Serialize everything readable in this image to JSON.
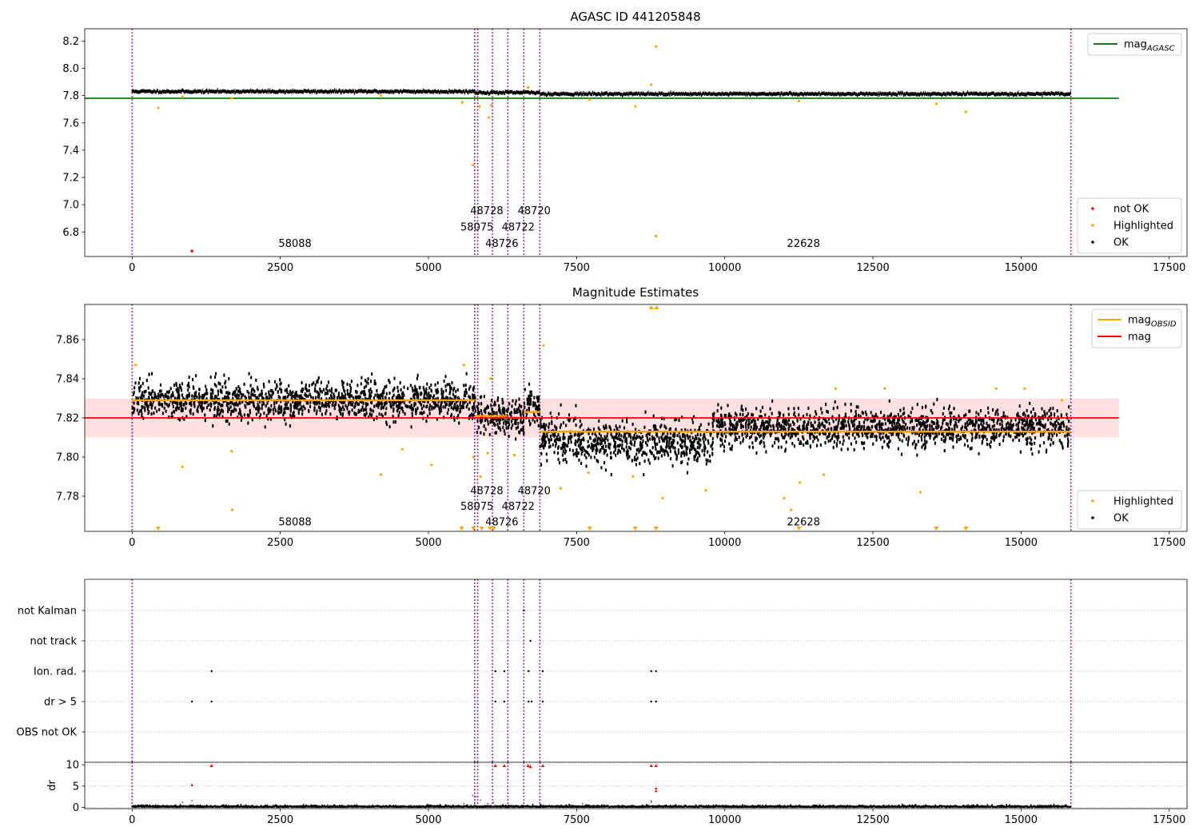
{
  "chart_data": [
    {
      "type": "scatter",
      "title": "AGASC ID 441205848",
      "xlabel": "",
      "ylabel": "",
      "xlim": [
        -800,
        17800
      ],
      "ylim": [
        6.62,
        8.29
      ],
      "xticks": [
        "0",
        "2500",
        "5000",
        "7500",
        "10000",
        "12500",
        "15000",
        "17500"
      ],
      "xtick_values": [
        0,
        2500,
        5000,
        7500,
        10000,
        12500,
        15000,
        17500
      ],
      "yticks": [
        "6.8",
        "7.0",
        "7.2",
        "7.4",
        "7.6",
        "7.8",
        "8.0",
        "8.2"
      ],
      "ytick_values": [
        6.8,
        7.0,
        7.2,
        7.4,
        7.6,
        7.8,
        8.0,
        8.2
      ],
      "reference_line": {
        "name": "mag",
        "subscript": "AGASC",
        "y": 7.78,
        "x": [
          -800,
          16650
        ],
        "color": "#008000"
      },
      "boundaries": [
        0,
        5780,
        5830,
        6080,
        6340,
        6610,
        6880,
        15840
      ],
      "obsid_labels": [
        {
          "text": "58088",
          "x": 2470,
          "y": 6.69
        },
        {
          "text": "58075",
          "x": 5540,
          "y": 6.81
        },
        {
          "text": "48728",
          "x": 5705,
          "y": 6.93
        },
        {
          "text": "48726",
          "x": 5960,
          "y": 6.69
        },
        {
          "text": "48722",
          "x": 6235,
          "y": 6.81
        },
        {
          "text": "48720",
          "x": 6505,
          "y": 6.93
        },
        {
          "text": "22628",
          "x": 11050,
          "y": 6.69
        }
      ],
      "band_levels": [
        {
          "x": [
            0,
            5790
          ],
          "y": 7.83
        },
        {
          "x": [
            5790,
            6880
          ],
          "y": 7.822
        },
        {
          "x": [
            6880,
            15840
          ],
          "y": 7.812
        }
      ],
      "not_ok_points": [
        [
          1010,
          6.66
        ]
      ],
      "highlighted_points": [
        [
          440,
          7.71
        ],
        [
          850,
          7.79
        ],
        [
          1680,
          7.78
        ],
        [
          4200,
          7.8
        ],
        [
          5570,
          7.75
        ],
        [
          5750,
          7.29
        ],
        [
          5860,
          7.72
        ],
        [
          6020,
          7.64
        ],
        [
          6060,
          7.73
        ],
        [
          6680,
          7.86
        ],
        [
          7720,
          7.77
        ],
        [
          8490,
          7.72
        ],
        [
          8760,
          7.88
        ],
        [
          8840,
          8.16
        ],
        [
          8840,
          6.77
        ],
        [
          11250,
          7.76
        ],
        [
          13570,
          7.74
        ],
        [
          14070,
          7.68
        ]
      ],
      "legend_top": [
        {
          "label": "mag",
          "subscript": "AGASC",
          "color": "#008000",
          "kind": "line"
        }
      ],
      "legend_bottom": [
        {
          "label": "not OK",
          "color": "#ff0000",
          "kind": "dot"
        },
        {
          "label": "Highlighted",
          "color": "#ffa500",
          "kind": "dot"
        },
        {
          "label": "OK",
          "color": "#000000",
          "kind": "dot"
        }
      ],
      "colors": {
        "ok": "#000000",
        "highlighted": "#ffa500",
        "not_ok": "#ff0000",
        "boundary": "#800080"
      }
    },
    {
      "type": "scatter",
      "title": "Magnitude Estimates",
      "xlabel": "",
      "ylabel": "",
      "xlim": [
        -800,
        17800
      ],
      "ylim": [
        7.762,
        7.878
      ],
      "xticks": [
        "0",
        "2500",
        "5000",
        "7500",
        "10000",
        "12500",
        "15000",
        "17500"
      ],
      "xtick_values": [
        0,
        2500,
        5000,
        7500,
        10000,
        12500,
        15000,
        17500
      ],
      "yticks": [
        "7.78",
        "7.80",
        "7.82",
        "7.84",
        "7.86"
      ],
      "ytick_values": [
        7.78,
        7.8,
        7.82,
        7.84,
        7.86
      ],
      "mag_line": {
        "name": "mag",
        "y": 7.82,
        "x": [
          -800,
          16650
        ],
        "band": [
          7.81,
          7.83
        ],
        "color": "#ff0000"
      },
      "obsid_mag": [
        {
          "x": [
            0,
            5790
          ],
          "y": 7.829
        },
        {
          "x": [
            5790,
            6330
          ],
          "y": 7.821
        },
        {
          "x": [
            6330,
            6610
          ],
          "y": 7.82
        },
        {
          "x": [
            6610,
            6880
          ],
          "y": 7.823
        },
        {
          "x": [
            6880,
            15840
          ],
          "y": 7.813
        }
      ],
      "boundaries": [
        0,
        5780,
        5830,
        6080,
        6340,
        6610,
        6880,
        15840
      ],
      "obsid_labels": [
        {
          "text": "58088",
          "x": 2470,
          "y": 7.765
        },
        {
          "text": "58075",
          "x": 5540,
          "y": 7.773
        },
        {
          "text": "48728",
          "x": 5705,
          "y": 7.781
        },
        {
          "text": "48726",
          "x": 5960,
          "y": 7.765
        },
        {
          "text": "48722",
          "x": 6235,
          "y": 7.773
        },
        {
          "text": "48720",
          "x": 6505,
          "y": 7.781
        },
        {
          "text": "22628",
          "x": 11050,
          "y": 7.765
        }
      ],
      "segments": [
        {
          "x": [
            0,
            5790
          ],
          "center": 7.829,
          "spread": 0.0085
        },
        {
          "x": [
            5790,
            6340
          ],
          "center": 7.821,
          "spread": 0.008
        },
        {
          "x": [
            6340,
            6610
          ],
          "center": 7.82,
          "spread": 0.008
        },
        {
          "x": [
            6610,
            6880
          ],
          "center": 7.826,
          "spread": 0.009
        },
        {
          "x": [
            6880,
            7500
          ],
          "center": 7.81,
          "spread": 0.011
        },
        {
          "x": [
            7500,
            9800
          ],
          "center": 7.807,
          "spread": 0.01
        },
        {
          "x": [
            9800,
            15840
          ],
          "center": 7.815,
          "spread": 0.009
        }
      ],
      "highlighted_points": [
        [
          60,
          7.847
        ],
        [
          850,
          7.795
        ],
        [
          1680,
          7.803
        ],
        [
          1690,
          7.773
        ],
        [
          4200,
          7.791
        ],
        [
          4560,
          7.804
        ],
        [
          5050,
          7.796
        ],
        [
          5600,
          7.847
        ],
        [
          5760,
          7.8
        ],
        [
          5880,
          7.79
        ],
        [
          6000,
          7.802
        ],
        [
          6050,
          7.84
        ],
        [
          6450,
          7.801
        ],
        [
          6940,
          7.857
        ],
        [
          7230,
          7.784
        ],
        [
          7700,
          7.792
        ],
        [
          8450,
          7.79
        ],
        [
          8950,
          7.779
        ],
        [
          9680,
          7.783
        ],
        [
          11000,
          7.779
        ],
        [
          11120,
          7.773
        ],
        [
          11270,
          7.787
        ],
        [
          11670,
          7.791
        ],
        [
          11870,
          7.835
        ],
        [
          12700,
          7.835
        ],
        [
          13300,
          7.782
        ],
        [
          14580,
          7.835
        ],
        [
          15060,
          7.835
        ],
        [
          15690,
          7.829
        ]
      ],
      "offscale_low_x": [
        440,
        5560,
        5760,
        5900,
        6040,
        6100,
        7720,
        8490,
        8840,
        11250,
        13570,
        14070
      ],
      "offscale_high_x": [
        8760,
        8850
      ],
      "legend_top": [
        {
          "label": "mag",
          "subscript": "OBSID",
          "color": "#ffa500",
          "kind": "line"
        },
        {
          "label": "mag",
          "color": "#ff0000",
          "kind": "line"
        }
      ],
      "legend_bottom": [
        {
          "label": "Highlighted",
          "color": "#ffa500",
          "kind": "dot"
        },
        {
          "label": "OK",
          "color": "#000000",
          "kind": "dot"
        }
      ],
      "colors": {
        "ok": "#000000",
        "highlighted": "#ffa500",
        "boundary": "#800080"
      }
    },
    {
      "type": "scatter",
      "title": "",
      "xlabel": "",
      "ylabel": "",
      "xlim": [
        -800,
        17800
      ],
      "xticks": [
        "0",
        "2500",
        "5000",
        "7500",
        "10000",
        "12500",
        "15000",
        "17500"
      ],
      "xtick_values": [
        0,
        2500,
        5000,
        7500,
        10000,
        12500,
        15000,
        17500
      ],
      "flag_categories": [
        "not Kalman",
        "not track",
        "Ion. rad.",
        "dr > 5",
        "OBS not OK"
      ],
      "boundaries": [
        0,
        5780,
        5830,
        6080,
        6340,
        6610,
        6880,
        15840
      ],
      "flag_points": [
        {
          "category": "not Kalman",
          "x": [
            6610
          ]
        },
        {
          "category": "not track",
          "x": [
            6720
          ]
        },
        {
          "category": "Ion. rad.",
          "x": [
            1340,
            6130,
            6280,
            6690,
            6930,
            8760,
            8840
          ]
        },
        {
          "category": "dr > 5",
          "x": [
            1010,
            1340,
            6130,
            6280,
            6690,
            6740,
            6930,
            8760,
            8840
          ]
        },
        {
          "category": "OBS not OK",
          "x": []
        }
      ],
      "colors": {
        "flag": "#000000",
        "boundary": "#800080"
      }
    },
    {
      "type": "scatter",
      "title": "",
      "xlabel": "",
      "ylabel": "dr",
      "xlim": [
        -800,
        17800
      ],
      "ylim": [
        -0.3,
        10.6
      ],
      "xticks": [
        "0",
        "2500",
        "5000",
        "7500",
        "10000",
        "12500",
        "15000",
        "17500"
      ],
      "xtick_values": [
        0,
        2500,
        5000,
        7500,
        10000,
        12500,
        15000,
        17500
      ],
      "yticks": [
        "0",
        "5",
        "10"
      ],
      "ytick_values": [
        0,
        5,
        10
      ],
      "boundaries": [
        0,
        5780,
        5830,
        6080,
        6340,
        6610,
        6880,
        15840
      ],
      "clipped_points": [
        [
          1340,
          9.8
        ],
        [
          6130,
          9.8
        ],
        [
          6280,
          9.8
        ],
        [
          6680,
          9.8
        ],
        [
          6720,
          9.6
        ],
        [
          6930,
          9.8
        ],
        [
          8760,
          9.8
        ],
        [
          8840,
          9.8
        ]
      ],
      "red_points": [
        [
          1010,
          5.2
        ],
        [
          8840,
          4.4
        ],
        [
          8840,
          3.8
        ]
      ],
      "gray_points": [
        [
          60,
          0.5
        ],
        [
          850,
          1.2
        ],
        [
          1010,
          1.6
        ],
        [
          3300,
          0.6
        ],
        [
          5600,
          0.9
        ],
        [
          5750,
          2.8
        ],
        [
          5800,
          2.5
        ],
        [
          5880,
          1.7
        ],
        [
          6000,
          0.9
        ],
        [
          6100,
          1.2
        ],
        [
          7600,
          0.9
        ],
        [
          8760,
          1.5
        ],
        [
          8760,
          1.2
        ]
      ],
      "colors": {
        "ok": "#000000",
        "clipped": "#ff0000",
        "boundary": "#800080"
      }
    }
  ]
}
